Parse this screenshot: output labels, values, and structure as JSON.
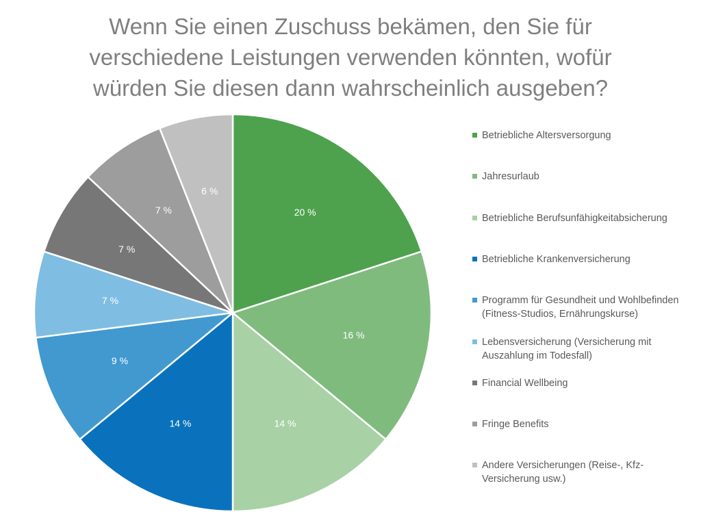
{
  "chart_data": {
    "type": "pie",
    "title_lines": [
      "Wenn Sie einen Zuschuss bekämen, den Sie für",
      "verschiedene Leistungen verwenden könnten, wofür",
      "würden Sie diesen dann wahrscheinlich ausgeben?"
    ],
    "legend_position": "right",
    "slices": [
      {
        "label": "Betriebliche Altersversorgung",
        "value": 20,
        "display": "20 %",
        "color": "#4ea24e"
      },
      {
        "label": "Jahresurlaub",
        "value": 16,
        "display": "16 %",
        "color": "#7fbb7d"
      },
      {
        "label": "Betriebliche Berufsunfähigkeitabsicherung",
        "value": 14,
        "display": "14 %",
        "color": "#a8d1a6"
      },
      {
        "label": "Betriebliche Krankenversicherung",
        "value": 14,
        "display": "14 %",
        "color": "#0a72bc"
      },
      {
        "label": "Programm für Gesundheit und Wohlbefinden (Fitness-Studios, Ernährungskurse)",
        "value": 9,
        "display": "9 %",
        "color": "#4199d0"
      },
      {
        "label": "Lebensversicherung (Versicherung mit Auszahlung im Todesfall)",
        "value": 7,
        "display": "7 %",
        "color": "#80bde2"
      },
      {
        "label": "Financial Wellbeing",
        "value": 7,
        "display": "7 %",
        "color": "#777777"
      },
      {
        "label": "Fringe Benefits",
        "value": 7,
        "display": "7 %",
        "color": "#9d9d9d"
      },
      {
        "label": "Andere Versicherungen (Reise-, Kfz-Versicherung usw.)",
        "value": 6,
        "display": "6 %",
        "color": "#c0c0c0"
      }
    ]
  }
}
